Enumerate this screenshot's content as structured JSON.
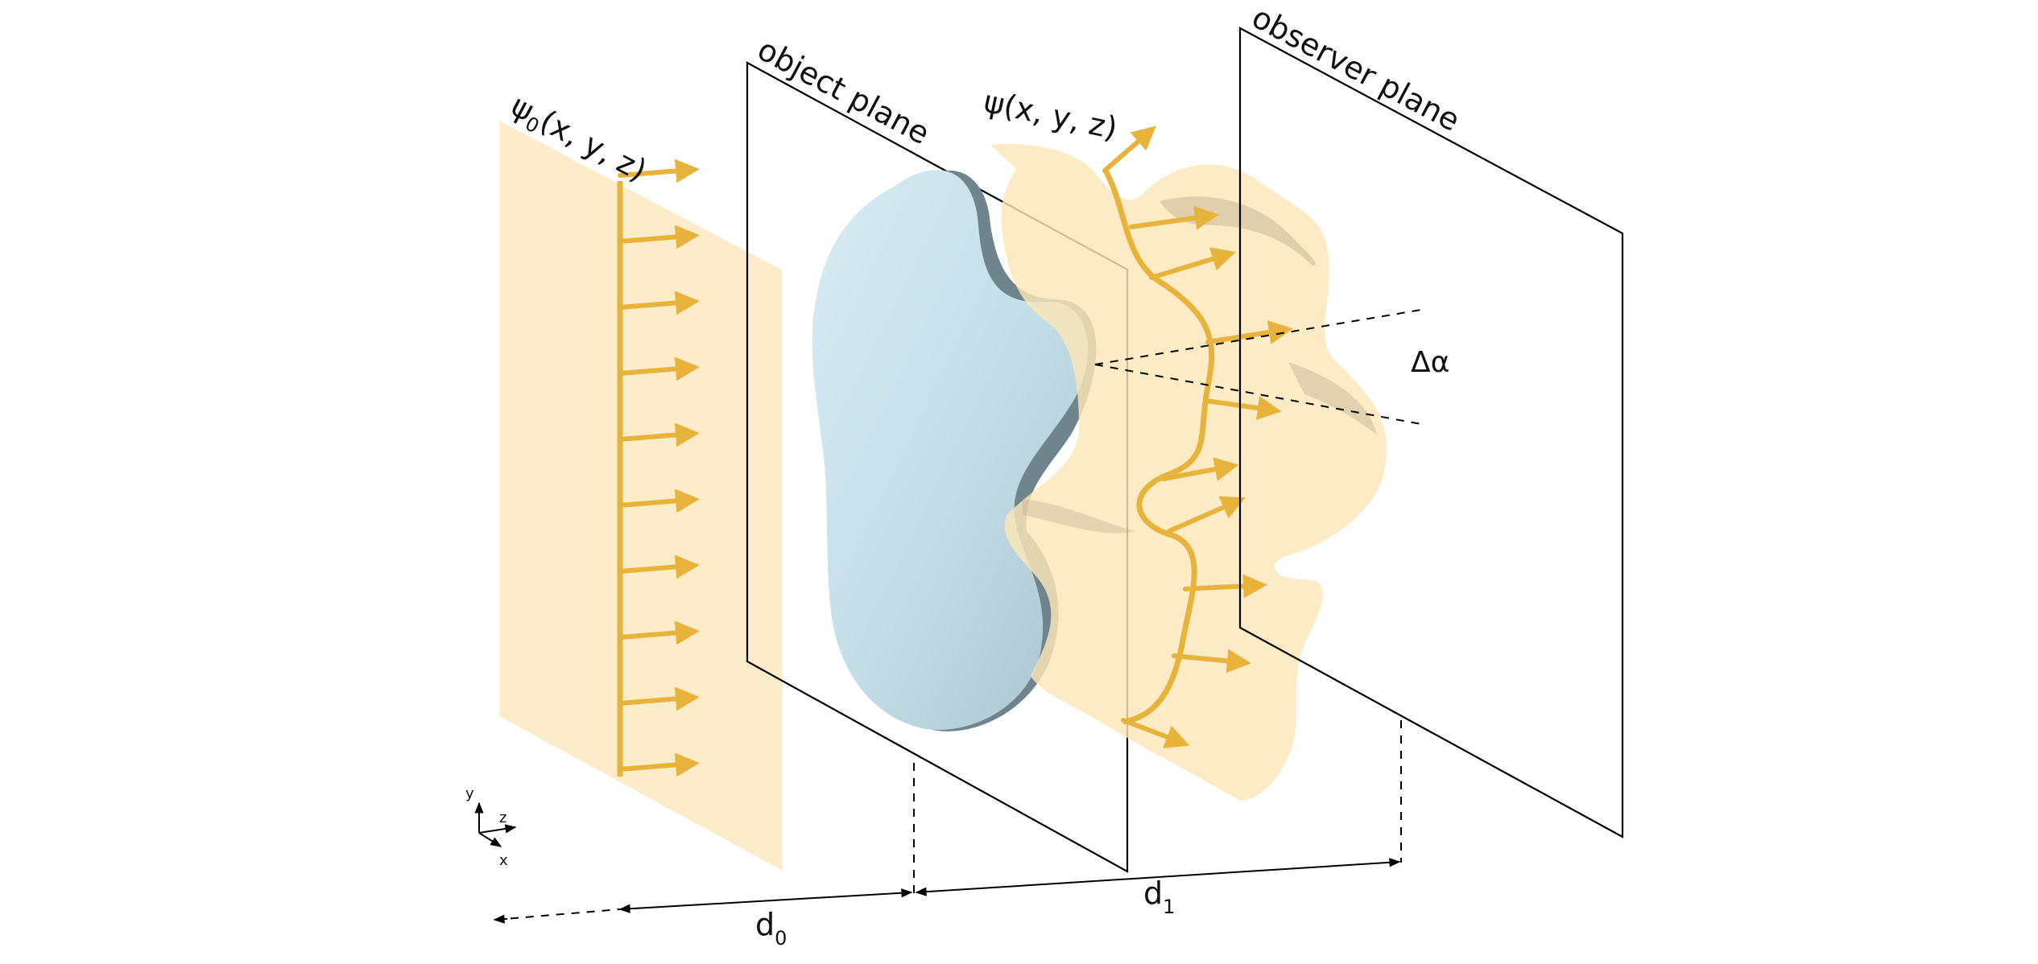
{
  "labels": {
    "psi0_main": "ψ",
    "psi0_sub": "0",
    "psi0_args": "(x, y, z)",
    "object_plane": "object plane",
    "psi": "ψ(x, y, z)",
    "observer_plane": "observer plane",
    "delta_alpha": "Δα",
    "d0_main": "d",
    "d0_sub": "0",
    "d1_main": "d",
    "d1_sub": "1",
    "axis_x": "x",
    "axis_y": "y",
    "axis_z": "z"
  },
  "colors": {
    "wave_fill": "#fcebc6",
    "arrow": "#e8b33a",
    "object_light": "#cfe6ef",
    "object_shadow": "#6d8189",
    "line": "#000000"
  },
  "icons": {
    "coordinate_axes": "xyz-axes-icon"
  }
}
